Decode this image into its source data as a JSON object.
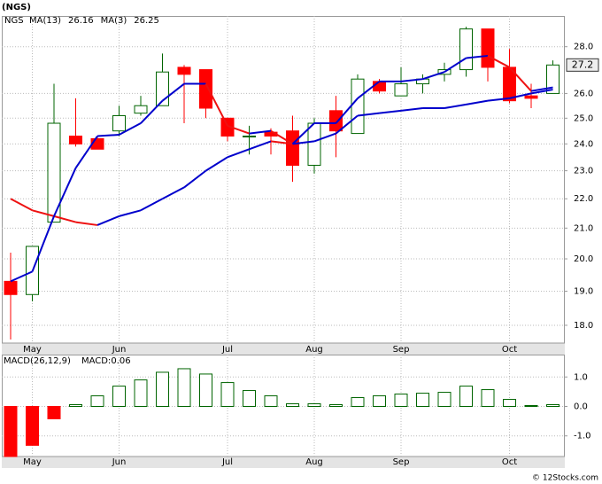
{
  "chart_data": [
    {
      "type": "candlestick",
      "title": "(NGS)",
      "ticker": "NGS",
      "categories": [
        null,
        "May",
        null,
        null,
        null,
        "Jun",
        null,
        null,
        null,
        null,
        "Jul",
        null,
        null,
        null,
        "Aug",
        null,
        null,
        null,
        "Sep",
        null,
        null,
        null,
        null,
        "Oct",
        null,
        null
      ],
      "open": [
        19.3,
        18.9,
        21.2,
        24.3,
        24.2,
        24.5,
        25.2,
        25.5,
        27.1,
        27.0,
        25.0,
        24.3,
        24.45,
        24.5,
        23.2,
        25.3,
        24.4,
        26.5,
        25.9,
        26.4,
        26.8,
        27.0,
        28.8,
        27.1,
        25.9,
        26.0
      ],
      "high": [
        20.2,
        20.4,
        26.4,
        25.8,
        24.3,
        25.5,
        25.9,
        27.7,
        27.2,
        27.0,
        25.0,
        24.7,
        24.6,
        25.1,
        25.0,
        25.9,
        26.8,
        26.6,
        27.1,
        26.8,
        27.3,
        28.9,
        28.8,
        27.9,
        26.4,
        27.4
      ],
      "low": [
        17.6,
        18.7,
        21.2,
        23.9,
        23.8,
        24.3,
        25.1,
        25.5,
        24.8,
        25.0,
        24.1,
        23.6,
        23.6,
        22.6,
        22.9,
        23.5,
        24.4,
        26.0,
        25.9,
        26.0,
        26.5,
        26.7,
        26.5,
        25.6,
        25.4,
        26.0
      ],
      "close": [
        18.9,
        20.4,
        24.8,
        24.0,
        23.8,
        25.1,
        25.5,
        26.9,
        26.8,
        25.4,
        24.3,
        24.3,
        24.3,
        23.2,
        24.8,
        24.5,
        26.6,
        26.1,
        26.4,
        26.6,
        27.0,
        28.8,
        27.1,
        25.7,
        25.8,
        27.2
      ],
      "up_color": "#ffffff",
      "up_edge": "#006400",
      "down_color": "#ff0000",
      "overlays": [
        {
          "name": "MA(13)",
          "values": [
            22.0,
            21.6,
            21.4,
            21.2,
            21.1,
            21.4,
            21.6,
            22.0,
            22.4,
            23.0,
            23.5,
            23.8,
            24.1,
            24.0,
            24.1,
            24.4,
            25.1,
            25.2,
            25.3,
            25.4,
            25.4,
            25.55,
            25.7,
            25.8,
            26.0,
            26.16
          ]
        },
        {
          "name": "MA(3)",
          "values": [
            19.3,
            19.6,
            21.4,
            23.1,
            24.3,
            24.35,
            24.8,
            25.7,
            26.4,
            26.4,
            24.7,
            24.4,
            24.5,
            24.0,
            24.8,
            24.8,
            25.8,
            26.5,
            26.5,
            26.6,
            26.9,
            27.5,
            27.6,
            27.1,
            26.1,
            26.25
          ]
        }
      ],
      "line_up_color": "#0000cc",
      "line_down_color": "#ee1111",
      "legend_text_color": "#0000cc",
      "ticker_color": "#008000",
      "ylim": [
        17.5,
        29.4
      ],
      "log_scale": true,
      "grid": true,
      "yticks": [
        {
          "value": 18,
          "label": "18.0"
        },
        {
          "value": 19,
          "label": "19.0"
        },
        {
          "value": 20,
          "label": "20.0"
        },
        {
          "value": 21,
          "label": "21.0"
        },
        {
          "value": 22,
          "label": "22.0"
        },
        {
          "value": 23,
          "label": "23.0"
        },
        {
          "value": 24,
          "label": "24.0"
        },
        {
          "value": 25,
          "label": "25.0"
        },
        {
          "value": 26,
          "label": "26.0"
        },
        {
          "value": 28,
          "label": "28.0"
        }
      ]
    },
    {
      "type": "bar",
      "title": "MACD(26,12,9)",
      "value_name": "MACD:",
      "categories": [
        null,
        "May",
        null,
        null,
        null,
        "Jun",
        null,
        null,
        null,
        null,
        "Jul",
        null,
        null,
        null,
        "Aug",
        null,
        null,
        null,
        "Sep",
        null,
        null,
        null,
        null,
        "Oct",
        null,
        null
      ],
      "values": [
        -1.7,
        -1.32,
        -0.42,
        0.06,
        0.36,
        0.69,
        0.9,
        1.16,
        1.28,
        1.1,
        0.81,
        0.54,
        0.36,
        0.09,
        0.09,
        0.06,
        0.3,
        0.36,
        0.42,
        0.45,
        0.48,
        0.69,
        0.57,
        0.24,
        0.03,
        0.06
      ],
      "up_color": "#ffffff",
      "up_edge": "#006400",
      "down_color": "#ff0000",
      "legend_text_color": "#0000cc",
      "ylim": [
        -1.7,
        1.76
      ],
      "grid": true,
      "yticks": [
        {
          "value": -1,
          "label": "-1.0"
        },
        {
          "value": 0,
          "label": "0.0"
        },
        {
          "value": 1,
          "label": "1.0"
        }
      ]
    }
  ],
  "footer": "© 12Stocks.com"
}
